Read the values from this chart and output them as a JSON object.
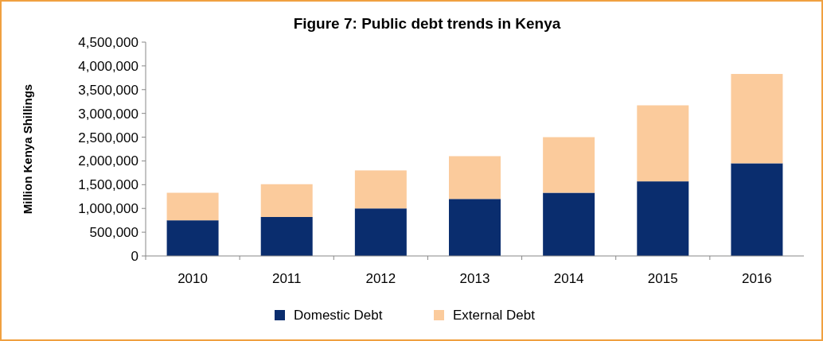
{
  "chart_data": {
    "type": "bar",
    "title": "Figure 7: Public debt trends in Kenya",
    "ylabel": "Million Kenya Shillings",
    "stacked": true,
    "legend": "bottom",
    "grid": false,
    "categories": [
      "2010",
      "2011",
      "2012",
      "2013",
      "2014",
      "2015",
      "2016"
    ],
    "ylim": [
      0,
      4500000
    ],
    "yticks": [
      {
        "value": 0,
        "label": "0"
      },
      {
        "value": 500000,
        "label": "500,000"
      },
      {
        "value": 1000000,
        "label": "1,000,000"
      },
      {
        "value": 1500000,
        "label": "1,500,000"
      },
      {
        "value": 2000000,
        "label": "2,000,000"
      },
      {
        "value": 2500000,
        "label": "2,500,000"
      },
      {
        "value": 3000000,
        "label": "3,000,000"
      },
      {
        "value": 3500000,
        "label": "3,500,000"
      },
      {
        "value": 4000000,
        "label": "4,000,000"
      },
      {
        "value": 4500000,
        "label": "4,500,000"
      }
    ],
    "series": [
      {
        "name": "Domestic Debt",
        "color": "#0a2d6e",
        "values": [
          750000,
          820000,
          1000000,
          1200000,
          1330000,
          1570000,
          1950000
        ]
      },
      {
        "name": "External Debt",
        "color": "#fbcb9c",
        "values": [
          580000,
          690000,
          800000,
          900000,
          1170000,
          1600000,
          1880000
        ]
      }
    ]
  }
}
